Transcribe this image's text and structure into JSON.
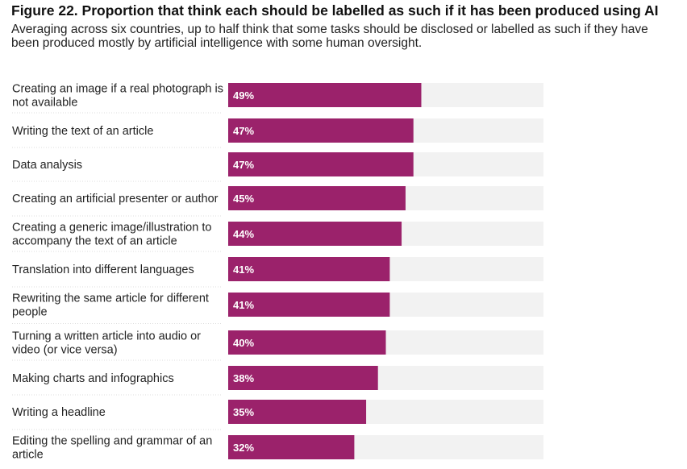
{
  "header": {
    "title": "Figure 22. Proportion that think each should be labelled as such if it has been produced using AI",
    "subtitle": "Averaging across six countries, up to half think that some tasks should be disclosed or labelled as such if they have been produced mostly by artificial intelligence with some human oversight."
  },
  "colors": {
    "bar": "#9b226b",
    "track": "#f2f2f2",
    "divider": "#dddddd"
  },
  "chart_data": {
    "type": "bar",
    "orientation": "horizontal",
    "xlim": [
      0,
      100
    ],
    "categories": [
      [
        "Creating an image if a real photograph is",
        "not available"
      ],
      [
        "Writing the text of an article"
      ],
      [
        "Data analysis"
      ],
      [
        "Creating an artificial presenter or author"
      ],
      [
        "Creating a generic image/illustration to",
        "accompany the text of an article"
      ],
      [
        "Translation into different languages"
      ],
      [
        "Rewriting the same article for different",
        "people"
      ],
      [
        "Turning a written article into audio or",
        "video (or vice versa)"
      ],
      [
        "Making charts and infographics"
      ],
      [
        "Writing a headline"
      ],
      [
        "Editing the spelling and grammar of an",
        "article"
      ]
    ],
    "values": [
      49,
      47,
      47,
      45,
      44,
      41,
      41,
      40,
      38,
      35,
      32
    ],
    "value_labels": [
      "49%",
      "47%",
      "47%",
      "45%",
      "44%",
      "41%",
      "41%",
      "40%",
      "38%",
      "35%",
      "32%"
    ],
    "grid": false,
    "legend": "none"
  }
}
